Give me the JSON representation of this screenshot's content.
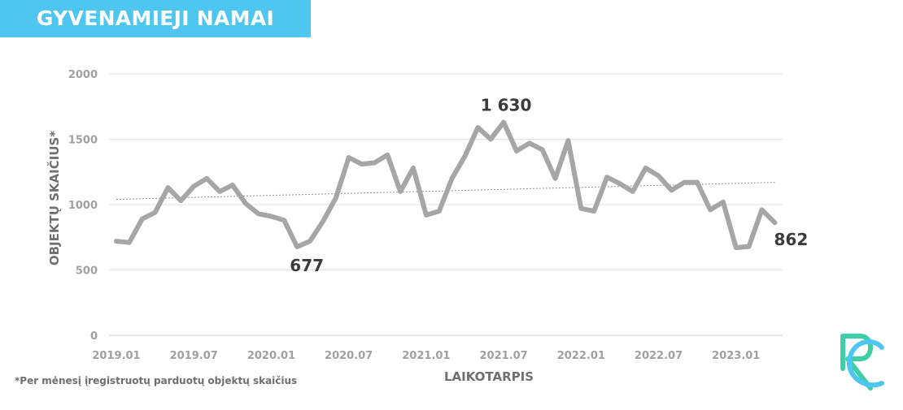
{
  "header": {
    "title": "GYVENAMIEJI NAMAI"
  },
  "footnote": "*Per mėnesį įregistruotų parduotų objektų skaičius",
  "colors": {
    "banner": "#4ec6ef",
    "line": "#a6a6a6",
    "trend": "#8c8c8c",
    "grid": "#e2e2e2",
    "logo_green": "#3ecfa6",
    "logo_blue": "#4ec6ef"
  },
  "logo": {
    "icon": "rc-logo-icon"
  },
  "chart_data": {
    "type": "line",
    "xlabel": "LAIKOTARPIS",
    "ylabel": "OBJEKTŲ SKAIČIUS*",
    "ylim": [
      0,
      2000
    ],
    "yticks": [
      0,
      500,
      1000,
      1500,
      2000
    ],
    "y_tick_labels": [
      "0",
      "500",
      "1000",
      "1500",
      "2000"
    ],
    "x_tick_labels": [
      "2019.01",
      "2019.07",
      "2020.01",
      "2020.07",
      "2021.01",
      "2021.07",
      "2022.01",
      "2022.07",
      "2023.01"
    ],
    "grid": true,
    "trendline": {
      "type": "linear",
      "style": "dotted",
      "start": 1040,
      "end": 1170
    },
    "series": [
      {
        "x": [
          "2019.01",
          "2019.02",
          "2019.03",
          "2019.04",
          "2019.05",
          "2019.06",
          "2019.07",
          "2019.08",
          "2019.09",
          "2019.10",
          "2019.11",
          "2019.12",
          "2020.01",
          "2020.02",
          "2020.03",
          "2020.04",
          "2020.05",
          "2020.06",
          "2020.07",
          "2020.08",
          "2020.09",
          "2020.10",
          "2020.11",
          "2020.12",
          "2021.01",
          "2021.02",
          "2021.03",
          "2021.04",
          "2021.05",
          "2021.06",
          "2021.07",
          "2021.08",
          "2021.09",
          "2021.10",
          "2021.11",
          "2021.12",
          "2022.01",
          "2022.02",
          "2022.03",
          "2022.04",
          "2022.05",
          "2022.06",
          "2022.07",
          "2022.08",
          "2022.09",
          "2022.10",
          "2022.11",
          "2022.12",
          "2023.01",
          "2023.02",
          "2023.03",
          "2023.04"
        ],
        "values": [
          720,
          710,
          890,
          940,
          1130,
          1030,
          1140,
          1200,
          1100,
          1150,
          1010,
          930,
          910,
          880,
          677,
          720,
          870,
          1050,
          1360,
          1310,
          1320,
          1380,
          1100,
          1280,
          920,
          950,
          1200,
          1370,
          1590,
          1500,
          1630,
          1410,
          1470,
          1420,
          1200,
          1490,
          970,
          950,
          1210,
          1160,
          1100,
          1280,
          1220,
          1110,
          1170,
          1170,
          960,
          1020,
          670,
          680,
          960,
          862
        ]
      }
    ],
    "annotations": [
      {
        "x": "2020.03",
        "value": 677,
        "text": "677"
      },
      {
        "x": "2021.07",
        "value": 1630,
        "text": "1 630"
      },
      {
        "x": "2023.04",
        "value": 862,
        "text": "862"
      }
    ]
  }
}
